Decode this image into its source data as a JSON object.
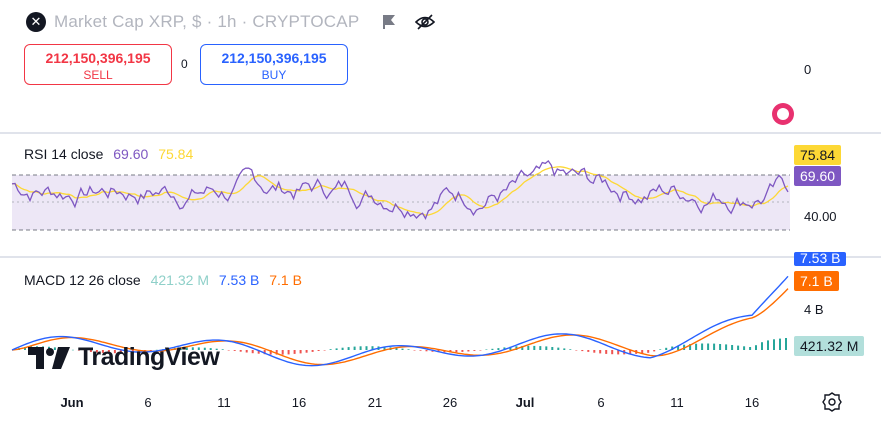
{
  "header": {
    "close_icon": "close-icon",
    "title": "Market Cap XRP, $ · 1h · CRYPTOCAP",
    "flag_icon": "flag-icon",
    "eye_icon": "eye-off-icon"
  },
  "trade": {
    "sell_price": "212,150,396,195",
    "sell_label": "SELL",
    "spread": "0",
    "buy_price": "212,150,396,195",
    "buy_label": "BUY"
  },
  "main_axis": {
    "zero_label": "0"
  },
  "rsi": {
    "name": "RSI 14 close",
    "value": "69.60",
    "ma_value": "75.84",
    "axis_label": "40.00",
    "tag_ma": "75.84",
    "tag_value": "69.60",
    "colors": {
      "rsi": "#7e57c2",
      "ma": "#fdd835",
      "band": "#ede7f6"
    }
  },
  "macd": {
    "name": "MACD 12 26 close",
    "histogram": "421.32 M",
    "macd_value": "7.53 B",
    "signal_value": "7.1 B",
    "axis_label": "4 B",
    "tag_top": "7.53 B",
    "tag_signal": "7.1 B",
    "tag_hist": "421.32 M",
    "colors": {
      "macd": "#2962ff",
      "signal": "#ff6d00",
      "hist_pos": "#26a69a",
      "hist_neg": "#ef5350"
    }
  },
  "branding": {
    "logo_text": "TradingView"
  },
  "time_axis": {
    "ticks": [
      "Jun",
      "6",
      "11",
      "16",
      "21",
      "26",
      "Jul",
      "6",
      "11",
      "16"
    ],
    "settings_icon": "settings-icon"
  }
}
